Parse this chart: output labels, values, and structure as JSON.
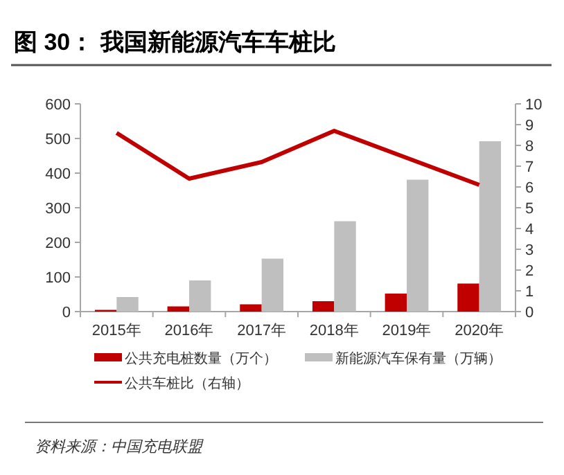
{
  "chart_data": {
    "type": "bar",
    "title": "图 30：  我国新能源汽车车桩比",
    "categories": [
      "2015年",
      "2016年",
      "2017年",
      "2018年",
      "2019年",
      "2020年"
    ],
    "series": [
      {
        "name": "公共充电桩数量（万个）",
        "color": "#c00000",
        "values": [
          5,
          15,
          21,
          30,
          52,
          81
        ]
      },
      {
        "name": "新能源汽车保有量（万辆）",
        "color": "#bfbfbf",
        "values": [
          42,
          90,
          153,
          261,
          381,
          492
        ]
      },
      {
        "name": "公共车桩比（右轴）",
        "type": "line",
        "axis": "y2",
        "color": "#c00000",
        "values": [
          8.6,
          6.4,
          7.2,
          8.7,
          7.4,
          6.1
        ]
      }
    ],
    "ylim": [
      0,
      600
    ],
    "yticks": [
      0,
      100,
      200,
      300,
      400,
      500,
      600
    ],
    "y2lim": [
      0,
      10
    ],
    "y2ticks": [
      0,
      1,
      2,
      3,
      4,
      5,
      6,
      7,
      8,
      9,
      10
    ],
    "legend": "bottom",
    "grid": false,
    "annotations": [
      "资料来源：中国充电联盟"
    ]
  }
}
